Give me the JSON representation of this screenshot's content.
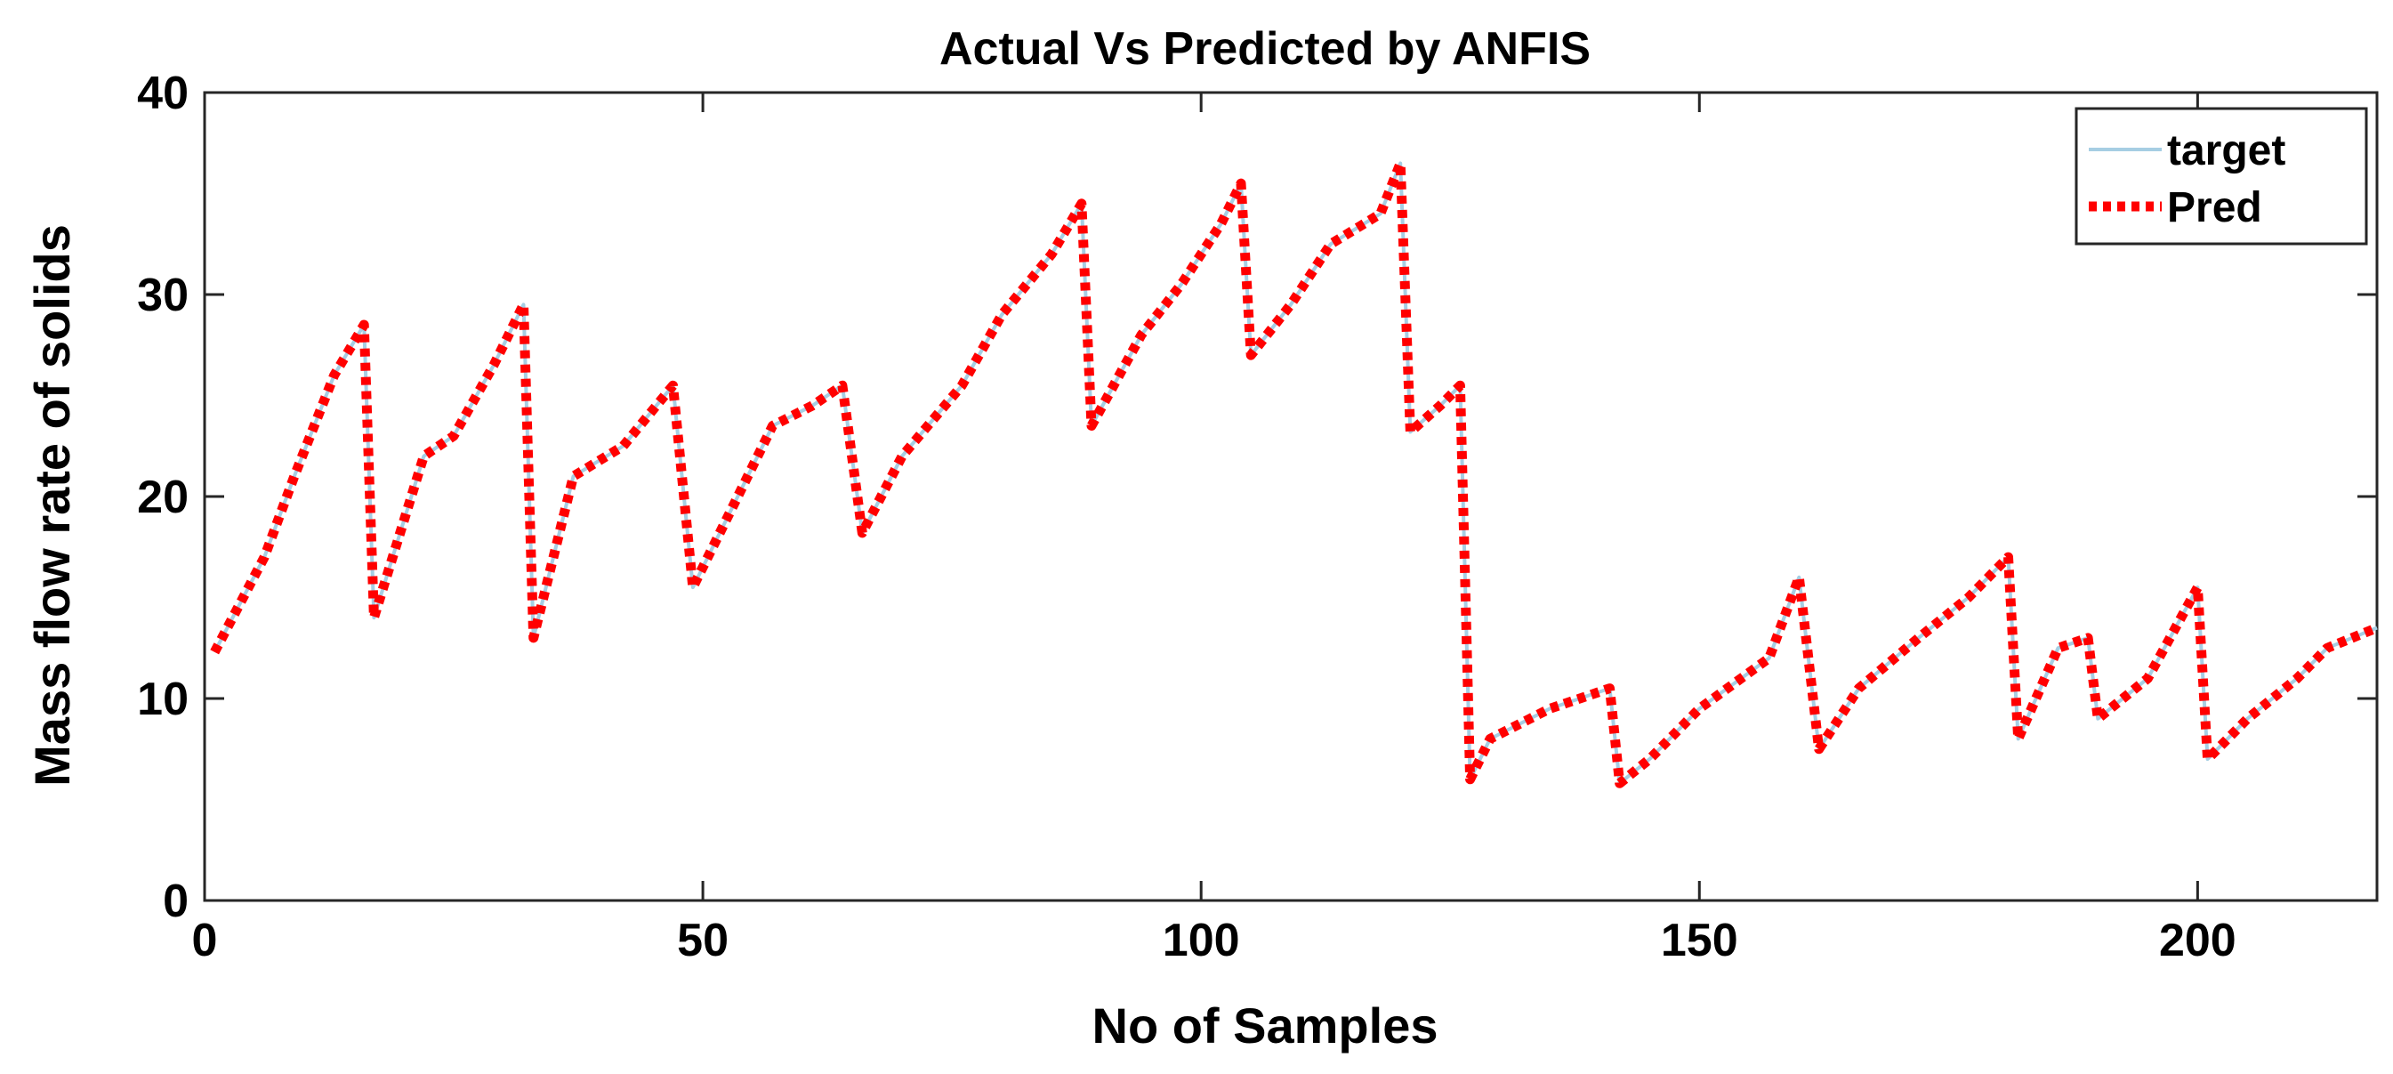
{
  "chart_data": {
    "type": "line",
    "title": "Actual Vs Predicted by ANFIS",
    "xlabel": "No of Samples",
    "ylabel": "Mass flow rate of solids",
    "xlim": [
      0,
      218
    ],
    "ylim": [
      0,
      40
    ],
    "xticks": [
      0,
      50,
      100,
      150,
      200
    ],
    "yticks": [
      0,
      10,
      20,
      30,
      40
    ],
    "grid": false,
    "legend_position": "top-right",
    "series": [
      {
        "name": "target",
        "color": "#a6cee3",
        "style": "solid",
        "x": [
          1,
          6,
          9,
          13,
          16,
          17,
          22,
          25,
          29,
          32,
          33,
          37,
          42,
          47,
          49,
          53,
          57,
          61,
          64,
          66,
          70,
          76,
          80,
          85,
          88,
          89,
          94,
          98,
          102,
          104,
          105,
          109,
          113,
          118,
          120,
          121,
          124,
          126,
          127,
          129,
          135,
          141,
          142,
          145,
          150,
          157,
          160,
          162,
          166,
          172,
          177,
          181,
          182,
          186,
          189,
          190,
          195,
          200,
          201,
          205,
          210,
          213,
          218
        ],
        "y": [
          12.3,
          17,
          21,
          26,
          28.5,
          14,
          22,
          23,
          26.5,
          29.5,
          13,
          21,
          22.5,
          25.5,
          15.5,
          19.5,
          23.5,
          24.5,
          25.5,
          18.2,
          22,
          25.5,
          29,
          32,
          34.5,
          23.5,
          28,
          30.5,
          33.5,
          35.5,
          27,
          29.5,
          32.5,
          34,
          36.5,
          23.2,
          24.5,
          25.5,
          6,
          8,
          9.5,
          10.5,
          5.8,
          7,
          9.5,
          12,
          16,
          7.5,
          10.5,
          13,
          15,
          17,
          8,
          12.5,
          13,
          9,
          11,
          15.5,
          7,
          9,
          11,
          12.5,
          13.5
        ]
      },
      {
        "name": "Pred",
        "color": "#ff0000",
        "style": "dotted",
        "x": [
          1,
          6,
          9,
          13,
          16,
          17,
          22,
          25,
          29,
          32,
          33,
          37,
          42,
          47,
          49,
          53,
          57,
          61,
          64,
          66,
          70,
          76,
          80,
          85,
          88,
          89,
          94,
          98,
          102,
          104,
          105,
          109,
          113,
          118,
          120,
          121,
          124,
          126,
          127,
          129,
          135,
          141,
          142,
          145,
          150,
          157,
          160,
          162,
          166,
          172,
          177,
          181,
          182,
          186,
          189,
          190,
          195,
          200,
          201,
          205,
          210,
          213,
          218
        ],
        "y": [
          12.3,
          17,
          21,
          26,
          28.5,
          14,
          22,
          23,
          26.5,
          29.5,
          13,
          21,
          22.5,
          25.5,
          15.5,
          19.5,
          23.5,
          24.5,
          25.5,
          18.2,
          22,
          25.5,
          29,
          32,
          34.5,
          23.5,
          28,
          30.5,
          33.5,
          35.5,
          27,
          29.5,
          32.5,
          34,
          36.5,
          23.2,
          24.5,
          25.5,
          6,
          8,
          9.5,
          10.5,
          5.8,
          7,
          9.5,
          12,
          16,
          7.5,
          10.5,
          13,
          15,
          17,
          8,
          12.5,
          13,
          9,
          11,
          15.5,
          7,
          9,
          11,
          12.5,
          13.5
        ]
      }
    ]
  }
}
